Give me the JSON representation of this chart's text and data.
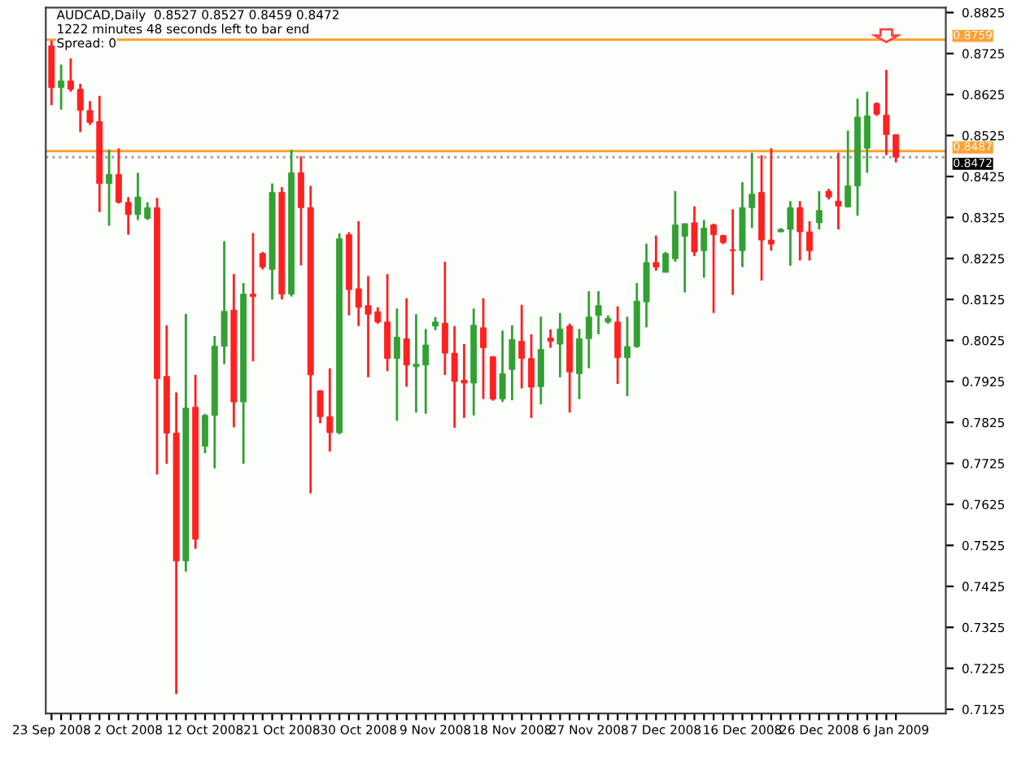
{
  "chart_data": {
    "type": "candlestick",
    "title": "AUDCAD,Daily  0.8527 0.8527 0.8459 0.8472",
    "annotations": [
      "1222 minutes 48 seconds left to bar end",
      "Spread: 0"
    ],
    "categories": [
      "23 Sep 2008",
      null,
      null,
      null,
      null,
      null,
      null,
      null,
      "2 Oct 2008",
      null,
      null,
      null,
      null,
      null,
      null,
      null,
      "12 Oct 2008",
      null,
      null,
      null,
      null,
      null,
      null,
      null,
      "21 Oct 2008",
      null,
      null,
      null,
      null,
      null,
      null,
      null,
      "30 Oct 2008",
      null,
      null,
      null,
      null,
      null,
      null,
      null,
      "9 Nov 2008",
      null,
      null,
      null,
      null,
      null,
      null,
      null,
      "18 Nov 2008",
      null,
      null,
      null,
      null,
      null,
      null,
      null,
      "27 Nov 2008",
      null,
      null,
      null,
      null,
      null,
      null,
      null,
      "7 Dec 2008",
      null,
      null,
      null,
      null,
      null,
      null,
      null,
      "16 Dec 2008",
      null,
      null,
      null,
      null,
      null,
      null,
      null,
      "26 Dec 2008",
      null,
      null,
      null,
      null,
      null,
      null,
      null,
      "6 Jan 2009"
    ],
    "ohlc": [
      [
        0.8744,
        0.8757,
        0.8599,
        0.8642
      ],
      [
        0.8642,
        0.8698,
        0.8588,
        0.8658
      ],
      [
        0.8658,
        0.8713,
        0.8632,
        0.8638
      ],
      [
        0.8638,
        0.8651,
        0.8533,
        0.8586
      ],
      [
        0.8586,
        0.8609,
        0.8551,
        0.8557
      ],
      [
        0.8559,
        0.8622,
        0.8338,
        0.8408
      ],
      [
        0.8408,
        0.8491,
        0.8305,
        0.843
      ],
      [
        0.843,
        0.8494,
        0.8359,
        0.8362
      ],
      [
        0.8362,
        0.8375,
        0.8283,
        0.8332
      ],
      [
        0.8332,
        0.8434,
        0.8319,
        0.8375
      ],
      [
        0.8323,
        0.8362,
        0.8319,
        0.8349
      ],
      [
        0.8349,
        0.8373,
        0.7698,
        0.7932
      ],
      [
        0.7937,
        0.8062,
        0.7724,
        0.7799
      ],
      [
        0.7799,
        0.7898,
        0.7162,
        0.7487
      ],
      [
        0.7487,
        0.809,
        0.7461,
        0.786
      ],
      [
        0.7862,
        0.7941,
        0.7517,
        0.754
      ],
      [
        0.7767,
        0.7846,
        0.775,
        0.7842
      ],
      [
        0.7842,
        0.8036,
        0.7713,
        0.8011
      ],
      [
        0.8011,
        0.8267,
        0.7967,
        0.8096
      ],
      [
        0.8099,
        0.8187,
        0.7813,
        0.7875
      ],
      [
        0.7875,
        0.8165,
        0.7724,
        0.8138
      ],
      [
        0.8138,
        0.8287,
        0.7974,
        0.8132
      ],
      [
        0.8237,
        0.8241,
        0.8198,
        0.8204
      ],
      [
        0.8198,
        0.8408,
        0.8125,
        0.8386
      ],
      [
        0.8386,
        0.8399,
        0.8125,
        0.8138
      ],
      [
        0.8138,
        0.849,
        0.8132,
        0.8434
      ],
      [
        0.8434,
        0.8474,
        0.8208,
        0.8349
      ],
      [
        0.8349,
        0.8402,
        0.7652,
        0.7941
      ],
      [
        0.7902,
        0.7904,
        0.7823,
        0.7839
      ],
      [
        0.7839,
        0.7957,
        0.7754,
        0.78
      ],
      [
        0.78,
        0.8286,
        0.7796,
        0.8273
      ],
      [
        0.8283,
        0.8289,
        0.8086,
        0.8149
      ],
      [
        0.8151,
        0.8316,
        0.806,
        0.8106
      ],
      [
        0.811,
        0.8182,
        0.7935,
        0.8089
      ],
      [
        0.8095,
        0.8106,
        0.8066,
        0.807
      ],
      [
        0.807,
        0.8187,
        0.795,
        0.7981
      ],
      [
        0.7981,
        0.8103,
        0.7829,
        0.8033
      ],
      [
        0.8029,
        0.8128,
        0.7912,
        0.7965
      ],
      [
        0.7961,
        0.8089,
        0.7849,
        0.7967
      ],
      [
        0.7965,
        0.8053,
        0.7846,
        0.8014
      ],
      [
        0.806,
        0.8082,
        0.805,
        0.807
      ],
      [
        0.8067,
        0.8217,
        0.7941,
        0.7994
      ],
      [
        0.7994,
        0.806,
        0.7812,
        0.7925
      ],
      [
        0.7928,
        0.8016,
        0.7836,
        0.7921
      ],
      [
        0.7921,
        0.8103,
        0.7842,
        0.8062
      ],
      [
        0.8056,
        0.8128,
        0.7882,
        0.8007
      ],
      [
        0.7985,
        0.7987,
        0.7878,
        0.7882
      ],
      [
        0.7882,
        0.8049,
        0.7875,
        0.7944
      ],
      [
        0.7954,
        0.8062,
        0.7879,
        0.8027
      ],
      [
        0.8023,
        0.8112,
        0.7908,
        0.7981
      ],
      [
        0.7981,
        0.804,
        0.7836,
        0.7911
      ],
      [
        0.7912,
        0.8083,
        0.7869,
        0.8003
      ],
      [
        0.8031,
        0.8052,
        0.8007,
        0.8023
      ],
      [
        0.8016,
        0.8092,
        0.7935,
        0.8053
      ],
      [
        0.806,
        0.8066,
        0.7849,
        0.7948
      ],
      [
        0.7944,
        0.8053,
        0.7882,
        0.8029
      ],
      [
        0.8029,
        0.8145,
        0.7957,
        0.8082
      ],
      [
        0.8086,
        0.8145,
        0.804,
        0.811
      ],
      [
        0.807,
        0.8086,
        0.8066,
        0.8079
      ],
      [
        0.807,
        0.8108,
        0.7919,
        0.7983
      ],
      [
        0.7983,
        0.8083,
        0.7889,
        0.801
      ],
      [
        0.801,
        0.8165,
        0.8007,
        0.8121
      ],
      [
        0.8119,
        0.8261,
        0.8057,
        0.8215
      ],
      [
        0.8215,
        0.8281,
        0.8195,
        0.8204
      ],
      [
        0.8191,
        0.8241,
        0.8191,
        0.8237
      ],
      [
        0.8224,
        0.8389,
        0.8217,
        0.8307
      ],
      [
        0.8279,
        0.831,
        0.8142,
        0.831
      ],
      [
        0.8312,
        0.8352,
        0.8231,
        0.8241
      ],
      [
        0.8244,
        0.8319,
        0.8178,
        0.8299
      ],
      [
        0.8307,
        0.831,
        0.8092,
        0.8283
      ],
      [
        0.8281,
        0.8283,
        0.826,
        0.8264
      ],
      [
        0.8246,
        0.8345,
        0.8136,
        0.8244
      ],
      [
        0.8244,
        0.8411,
        0.8204,
        0.8349
      ],
      [
        0.8349,
        0.8483,
        0.8299,
        0.8382
      ],
      [
        0.8386,
        0.8477,
        0.8171,
        0.827
      ],
      [
        0.827,
        0.8494,
        0.8244,
        0.826
      ],
      [
        0.829,
        0.8299,
        0.8289,
        0.8296
      ],
      [
        0.8296,
        0.8365,
        0.8207,
        0.8349
      ],
      [
        0.8349,
        0.8365,
        0.822,
        0.829
      ],
      [
        0.829,
        0.8316,
        0.822,
        0.8244
      ],
      [
        0.8312,
        0.8389,
        0.8296,
        0.8342
      ],
      [
        0.8389,
        0.8395,
        0.8369,
        0.8375
      ],
      [
        0.8365,
        0.8483,
        0.8296,
        0.8353
      ],
      [
        0.8351,
        0.8537,
        0.8349,
        0.8402
      ],
      [
        0.8402,
        0.8615,
        0.8329,
        0.857
      ],
      [
        0.8494,
        0.8632,
        0.8434,
        0.8573
      ],
      [
        0.8603,
        0.8606,
        0.8573,
        0.8577
      ],
      [
        0.8575,
        0.8685,
        0.8477,
        0.8527
      ],
      [
        0.8527,
        0.8527,
        0.8459,
        0.8472
      ]
    ],
    "colors": [
      "#ff2020",
      "#33a033",
      "#ff2020",
      "#ff2020",
      "#ff2020",
      "#ff2020",
      "#33a033",
      "#ff2020",
      "#ff2020",
      "#33a033",
      "#33a033",
      "#ff2020",
      "#ff2020",
      "#ff2020",
      "#33a033",
      "#ff2020",
      "#33a033",
      "#33a033",
      "#33a033",
      "#ff2020",
      "#33a033",
      "#ff2020",
      "#ff2020",
      "#33a033",
      "#ff2020",
      "#33a033",
      "#ff2020",
      "#ff2020",
      "#ff2020",
      "#ff2020",
      "#33a033",
      "#ff2020",
      "#ff2020",
      "#ff2020",
      "#ff2020",
      "#ff2020",
      "#33a033",
      "#ff2020",
      "#33a033",
      "#33a033",
      "#33a033",
      "#ff2020",
      "#ff2020",
      "#ff2020",
      "#33a033",
      "#ff2020",
      "#ff2020",
      "#33a033",
      "#33a033",
      "#ff2020",
      "#ff2020",
      "#33a033",
      "#ff2020",
      "#33a033",
      "#ff2020",
      "#33a033",
      "#33a033",
      "#33a033",
      "#33a033",
      "#ff2020",
      "#33a033",
      "#33a033",
      "#33a033",
      "#ff2020",
      "#33a033",
      "#33a033",
      "#33a033",
      "#ff2020",
      "#33a033",
      "#ff2020",
      "#ff2020",
      "#ff2020",
      "#33a033",
      "#33a033",
      "#ff2020",
      "#ff2020",
      "#33a033",
      "#33a033",
      "#ff2020",
      "#ff2020",
      "#33a033",
      "#ff2020",
      "#ff2020",
      "#33a033",
      "#33a033",
      "#33a033",
      "#ff2020",
      "#ff2020",
      "#ff2020"
    ],
    "ylim": [
      0.7115,
      0.8837
    ],
    "yticks": [
      0.7125,
      0.7225,
      0.7325,
      0.7425,
      0.7525,
      0.7625,
      0.7725,
      0.7825,
      0.7925,
      0.8025,
      0.8125,
      0.8225,
      0.8325,
      0.8425,
      0.8525,
      0.8625,
      0.8725,
      0.8825
    ],
    "ref_lines": [
      {
        "axis": "y",
        "value": 0.8759,
        "label": "0.8759",
        "color": "#ffa030",
        "line_style": "solid"
      },
      {
        "axis": "y",
        "value": 0.8487,
        "label": "0.8487",
        "color": "#ffa030",
        "line_style": "solid"
      },
      {
        "axis": "y",
        "value": 0.8472,
        "label": "0.8472",
        "color": "#a0a0a0",
        "line_style": "dotted"
      }
    ],
    "grid": false,
    "legend": false
  }
}
